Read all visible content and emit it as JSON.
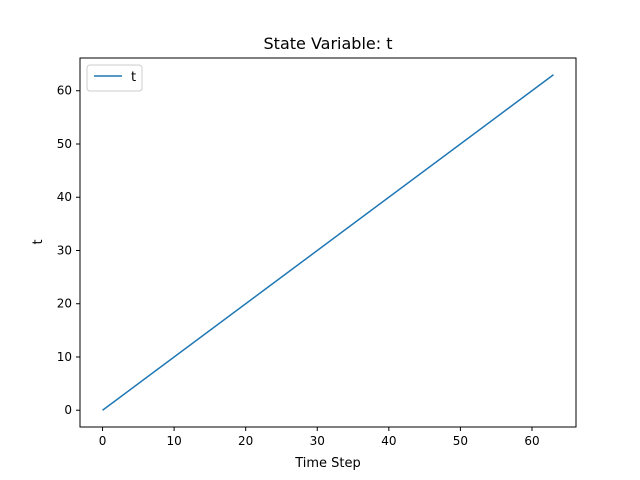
{
  "chart_data": {
    "type": "line",
    "title": "State Variable: t",
    "xlabel": "Time Step",
    "ylabel": "t",
    "xlim": [
      -3.15,
      66.15
    ],
    "ylim": [
      -3.15,
      66.15
    ],
    "xticks": [
      0,
      10,
      20,
      30,
      40,
      50,
      60
    ],
    "yticks": [
      0,
      10,
      20,
      30,
      40,
      50,
      60
    ],
    "grid": false,
    "legend_position": "top-left",
    "series": [
      {
        "name": "t",
        "color": "#1f77b4",
        "x": [
          0,
          63
        ],
        "y": [
          0,
          63
        ]
      }
    ]
  }
}
